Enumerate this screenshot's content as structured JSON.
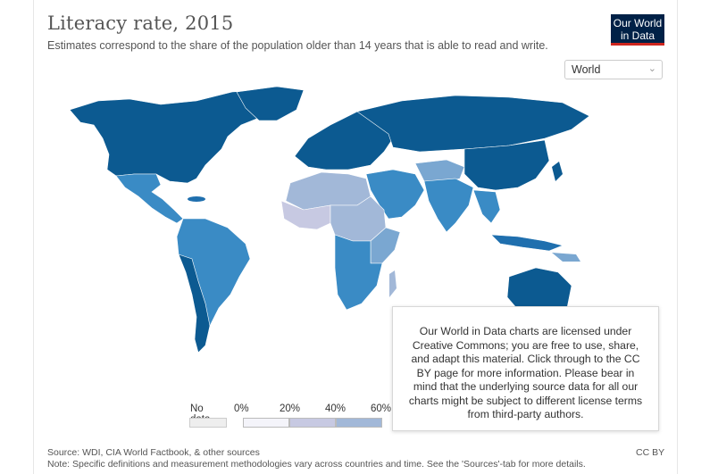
{
  "header": {
    "title": "Literacy rate, 2015",
    "subtitle": "Estimates correspond to the share of the population older than 14 years that is able to read and write.",
    "logo_line1": "Our World",
    "logo_line2": "in Data"
  },
  "region_select": {
    "selected": "World"
  },
  "legend": {
    "no_data_label": "No data",
    "ticks": [
      "0%",
      "20%",
      "40%",
      "60%"
    ],
    "bin_colors": [
      "#f4f4fa",
      "#c7c9e2",
      "#a2b8d8",
      "#7aa7d1",
      "#3a8bc5",
      "#1f6fae",
      "#0c5a91"
    ]
  },
  "tooltip": {
    "text": "Our World in Data charts are licensed under Creative Commons; you are free to use, share, and adapt this material. Click through to the CC BY page for more information. Please bear in mind that the underlying source data for all our charts might be subject to different license terms from third-party authors."
  },
  "footer": {
    "source": "Source: WDI, CIA World Factbook, & other sources",
    "note": "Note: Specific definitions and measurement methodologies vary across countries and time. See the 'Sources'-tab for more details.",
    "license": "CC BY"
  },
  "colors": {
    "very_high": "#0c5a91",
    "high": "#1f6fae",
    "mid": "#3a8bc5",
    "low": "#7aa7d1",
    "lower": "#a2b8d8",
    "lowest": "#c7c9e2",
    "minimal": "#e8e8f4"
  }
}
